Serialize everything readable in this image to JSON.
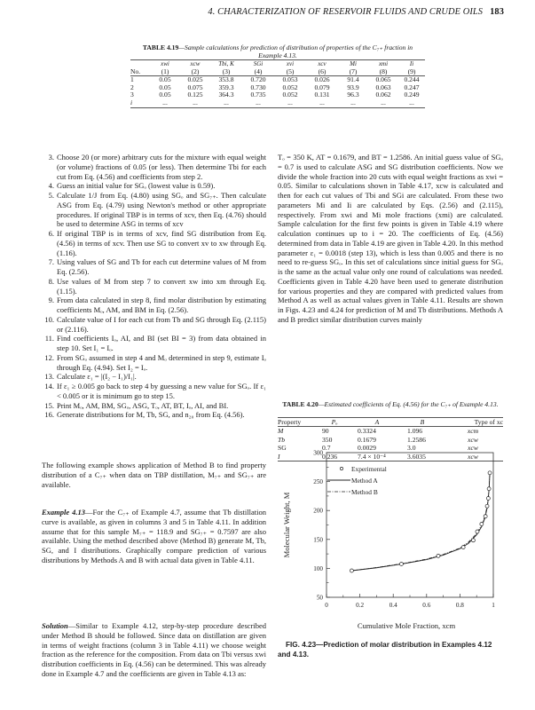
{
  "header": {
    "running_title": "4. CHARACTERIZATION OF RESERVOIR FLUIDS AND CRUDE OILS",
    "page_number": "183"
  },
  "table_4_19": {
    "label": "TABLE 4.19",
    "caption": "—Sample calculations for prediction of distribution of properties of the C₇₊ fraction in Example 4.13.",
    "symbols": [
      "",
      "xwi",
      "xcw",
      "Tbi, K",
      "SGi",
      "xvi",
      "xcv",
      "Mi",
      "xmi",
      "Ii"
    ],
    "numbers": [
      "No.",
      "(1)",
      "(2)",
      "(3)",
      "(4)",
      "(5)",
      "(6)",
      "(7)",
      "(8)",
      "(9)"
    ],
    "rows": [
      [
        "1",
        "0.05",
        "0.025",
        "353.8",
        "0.720",
        "0.053",
        "0.026",
        "91.4",
        "0.065",
        "0.244"
      ],
      [
        "2",
        "0.05",
        "0.075",
        "359.3",
        "0.730",
        "0.052",
        "0.079",
        "93.9",
        "0.063",
        "0.247"
      ],
      [
        "3",
        "0.05",
        "0.125",
        "364.3",
        "0.735",
        "0.052",
        "0.131",
        "96.3",
        "0.062",
        "0.249"
      ],
      [
        "i",
        "...",
        "...",
        "...",
        "...",
        "...",
        "...",
        "...",
        "...",
        "..."
      ]
    ]
  },
  "left_column": {
    "steps": [
      {
        "n": "3.",
        "text": "Choose 20 (or more) arbitrary cuts for the mixture with equal weight (or volume) fractions of 0.05 (or less). Then determine Tbi for each cut from Eq. (4.56) and coefficients from step 2."
      },
      {
        "n": "4.",
        "text": "Guess an initial value for SGₒ (lowest value is 0.59)."
      },
      {
        "n": "5.",
        "text": "Calculate 1/J from Eq. (4.80) using SGₒ and SG₇₊. Then calculate ASG from Eq. (4.79) using Newton's method or other appropriate procedures. If original TBP is in terms of xcv, then Eq. (4.76) should be used to determine ASG in terms of xcv"
      },
      {
        "n": "6.",
        "text": "If original TBP is in terms of xcv, find SG distribution from Eq. (4.56) in terms of xcv. Then use SG to convert xv to xw through Eq. (1.16)."
      },
      {
        "n": "7.",
        "text": "Using values of SG and Tb for each cut determine values of M from Eq. (2.56)."
      },
      {
        "n": "8.",
        "text": "Use values of M from step 7 to convert xw into xm through Eq. (1.15)."
      },
      {
        "n": "9.",
        "text": "From data calculated in step 8, find molar distribution by estimating coefficients Mₒ, AM, and BM in Eq. (2.56)."
      },
      {
        "n": "10.",
        "text": "Calculate value of I for each cut from Tb and SG through Eq. (2.115) or (2.116)."
      },
      {
        "n": "11.",
        "text": "Find coefficients Iₒ, AI, and BI (set BI = 3) from data obtained in step 10. Set I₁ = Iₒ."
      },
      {
        "n": "12.",
        "text": "From SGₒ assumed in step 4 and Mₒ determined in step 9, estimate Iₒ through Eq. (4.94). Set I₂ = Iₒ."
      },
      {
        "n": "13.",
        "text": "Calculate ε₁ = |(I₂ − I₁)/I₁|."
      },
      {
        "n": "14.",
        "text": "If ε₁ ≥ 0.005 go back to step 4 by guessing a new value for SGₒ. If ε₁ < 0.005 or it is minimum go to step 15."
      },
      {
        "n": "15.",
        "text": "Print Mₒ, AM, BM, SGₒ, ASG, Tₒ, AT, BT, Iₒ, AI, and BI."
      },
      {
        "n": "16.",
        "text": "Generate distributions for M, Tb, SG, and n₂₀ from Eq. (4.56)."
      }
    ],
    "intro": "The following example shows application of Method B to find property distribution of a C₇₊ when data on TBP distillation, M₇₊ and SG₇₊ are available.",
    "example_lead": "Example 4.13",
    "example_text": "—For the C₇₊ of Example 4.7, assume that Tb distillation curve is available, as given in columns 3 and 5 in Table 4.11. In addition assume that for this sample M₇₊ = 118.9 and SG₇₊ = 0.7597 are also available. Using the method described above (Method B) generate M, Tb, SG, and I distributions. Graphically compare prediction of various distributions by Methods A and B with actual data given in Table 4.11.",
    "solution_lead": "Solution",
    "solution_text": "—Similar to Example 4.12, step-by-step procedure described under Method B should be followed. Since data on distillation are given in terms of weight fractions (column 3 in Table 4.11) we choose weight fraction as the reference for the composition. From data on Tbi versus xwi distribution coefficients in Eq. (4.56) can be determined. This was already done in Example 4.7 and the coefficients are given in Table 4.13 as:"
  },
  "right_column": {
    "text": "Tₒ = 350 K, AT = 0.1679, and BT = 1.2586. An initial guess value of SGₒ = 0.7 is used to calculate ASG and SG distribution coefficients. Now we divide the whole fraction into 20 cuts with equal weight fractions as xwi = 0.05. Similar to calculations shown in Table 4.17, xcw is calculated and then for each cut values of Tbi and SGi are calculated. From these two parameters Mi and Ii are calculated by Eqs. (2.56) and (2.115), respectively. From xwi and Mi mole fractions (xmi) are calculated. Sample calculation for the first few points is given in Table 4.19 where calculation continues up to i = 20. The coefficients of Eq. (4.56) determined from data in Table 4.19 are given in Table 4.20. In this method parameter ε₁ = 0.0018 (step 13), which is less than 0.005 and there is no need to re-guess SGₒ. In this set of calculations since initial guess for SGₒ is the same as the actual value only one round of calculations was needed. Coefficients given in Table 4.20 have been used to generate distribution for various properties and they are compared with predicted values from Method A as well as actual values given in Table 4.11. Results are shown in Figs. 4.23 and 4.24 for prediction of M and Tb distributions. Methods A and B predict similar distribution curves mainly"
  },
  "table_4_20": {
    "label": "TABLE 4.20",
    "caption": "—Estimated coefficients of Eq. (4.56) for the C₇₊ of Example 4.13.",
    "headers": [
      "Property",
      "Pₒ",
      "A",
      "B",
      "Type of xc"
    ],
    "rows": [
      [
        "M",
        "90",
        "0.3324",
        "1.096",
        "xcm"
      ],
      [
        "Tb",
        "350",
        "0.1679",
        "1.2586",
        "xcw"
      ],
      [
        "SG",
        "0.7",
        "0.0029",
        "3.0",
        "xcw"
      ],
      [
        "I",
        "0.236",
        "7.4 × 10⁻⁴",
        "3.6035",
        "xcw"
      ]
    ]
  },
  "figure": {
    "caption": "FIG. 4.23—Prediction of molar distribution in Examples 4.12 and 4.13."
  },
  "chart_data": {
    "type": "line",
    "xlabel": "Cumulative Mole Fraction, xcm",
    "ylabel": "Molecular Weight, M",
    "xlim": [
      0,
      1
    ],
    "ylim": [
      50,
      300
    ],
    "xticks": [
      "0",
      "0.2",
      "0.4",
      "0.6",
      "0.8",
      "1"
    ],
    "yticks": [
      "50",
      "100",
      "150",
      "200",
      "250",
      "300"
    ],
    "grid": false,
    "legend_position": "top-left",
    "series": [
      {
        "name": "Experimental",
        "style": "markers",
        "x": [
          0.151,
          0.449,
          0.67,
          0.82,
          0.88,
          0.904,
          0.93,
          0.953,
          0.963,
          0.97,
          0.974,
          0.979
        ],
        "y": [
          96,
          107.5,
          121.5,
          136.5,
          148.5,
          163.5,
          176.5,
          190,
          207.5,
          221,
          237.5,
          265
        ]
      },
      {
        "name": "Method A",
        "style": "solid",
        "x": [
          0.151,
          0.3,
          0.449,
          0.6,
          0.7,
          0.8,
          0.85,
          0.9,
          0.93,
          0.95,
          0.965,
          0.975,
          0.979
        ],
        "y": [
          96,
          101,
          107.5,
          115,
          123,
          134,
          143,
          158,
          172,
          187,
          207,
          237,
          265
        ]
      },
      {
        "name": "Method B",
        "style": "dash-dot",
        "x": [
          0.151,
          0.3,
          0.449,
          0.6,
          0.7,
          0.8,
          0.85,
          0.9,
          0.93,
          0.95,
          0.965,
          0.975,
          0.979
        ],
        "y": [
          96,
          101.5,
          108,
          116,
          124,
          135,
          145,
          160,
          175,
          190,
          210,
          240,
          265
        ]
      }
    ]
  }
}
